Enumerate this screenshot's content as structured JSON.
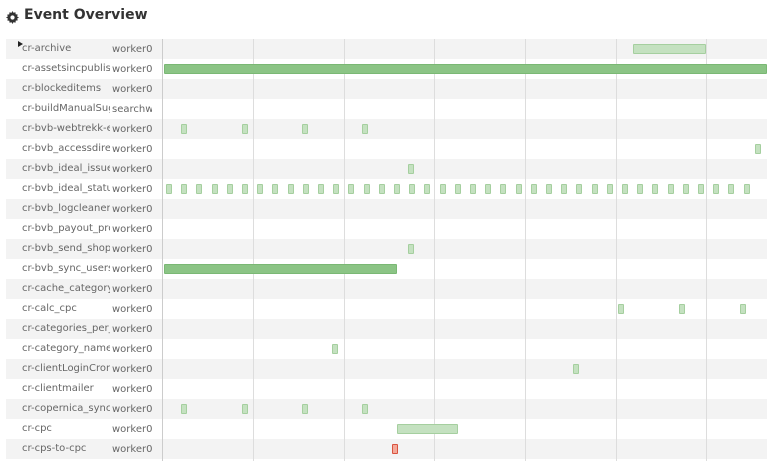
{
  "header": {
    "title": "Event Overview",
    "icon": "gear-icon"
  },
  "colors": {
    "success": "#c4e1c0",
    "long": "#8bc485",
    "error": "#f4a99a"
  },
  "rows": [
    {
      "name": "cr-archive",
      "worker": "worker0"
    },
    {
      "name": "cr-assetsincpublish",
      "worker": "worker0"
    },
    {
      "name": "cr-blockeditems",
      "worker": "worker0"
    },
    {
      "name": "cr-buildManualSuggest",
      "worker": "searchworker"
    },
    {
      "name": "cr-bvb-webtrekk-export",
      "worker": "worker0"
    },
    {
      "name": "cr-bvb_accessdirect",
      "worker": "worker0"
    },
    {
      "name": "cr-bvb_ideal_issuers",
      "worker": "worker0"
    },
    {
      "name": "cr-bvb_ideal_status",
      "worker": "worker0"
    },
    {
      "name": "cr-bvb_logcleaner",
      "worker": "worker0"
    },
    {
      "name": "cr-bvb_payout_process",
      "worker": "worker0"
    },
    {
      "name": "cr-bvb_send_shop",
      "worker": "worker0"
    },
    {
      "name": "cr-bvb_sync_users",
      "worker": "worker0"
    },
    {
      "name": "cr-cache_category",
      "worker": "worker0"
    },
    {
      "name": "cr-calc_cpc",
      "worker": "worker0"
    },
    {
      "name": "cr-categories_per_shop",
      "worker": "worker0"
    },
    {
      "name": "cr-category_names",
      "worker": "worker0"
    },
    {
      "name": "cr-clientLoginCron",
      "worker": "worker0"
    },
    {
      "name": "cr-clientmailer",
      "worker": "worker0"
    },
    {
      "name": "cr-copernica_sync",
      "worker": "worker0"
    },
    {
      "name": "cr-cpc",
      "worker": "worker0"
    },
    {
      "name": "cr-cps-to-cpc",
      "worker": "worker0"
    }
  ]
}
